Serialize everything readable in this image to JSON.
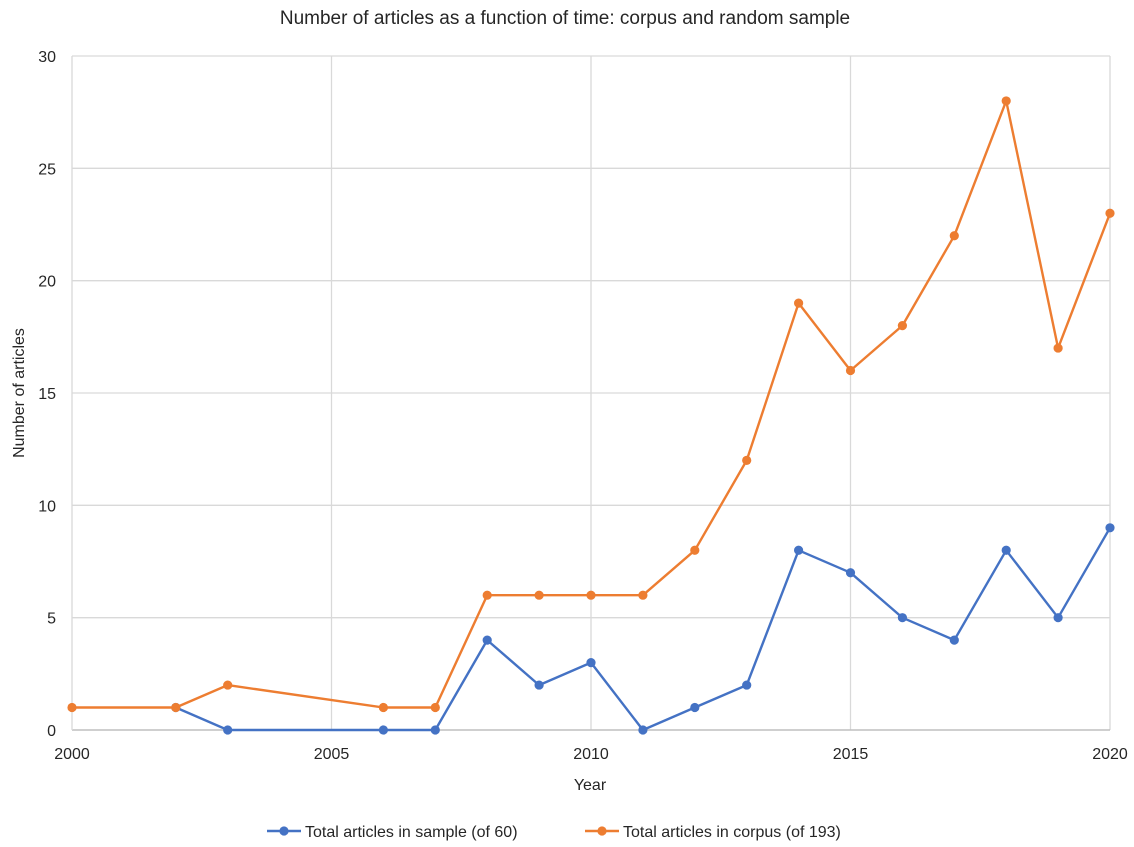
{
  "chart_data": {
    "type": "line",
    "title": "Number of articles as a function of time: corpus and random sample",
    "xlabel": "Year",
    "ylabel": "Number of articles",
    "xlim": [
      2000,
      2020
    ],
    "ylim": [
      0,
      30
    ],
    "x_ticks": [
      2000,
      2005,
      2010,
      2015,
      2020
    ],
    "y_ticks": [
      0,
      5,
      10,
      15,
      20,
      25,
      30
    ],
    "grid": true,
    "legend_position": "bottom",
    "series": [
      {
        "name": "Total articles in sample (of 60)",
        "color": "#4472C4",
        "x": [
          2002,
          2003,
          2006,
          2007,
          2008,
          2009,
          2010,
          2011,
          2012,
          2013,
          2014,
          2015,
          2016,
          2017,
          2018,
          2019,
          2020
        ],
        "values": [
          1,
          0,
          0,
          0,
          4,
          2,
          3,
          0,
          1,
          2,
          8,
          7,
          5,
          4,
          8,
          5,
          9
        ]
      },
      {
        "name": "Total articles in corpus (of 193)",
        "color": "#ED7D31",
        "x": [
          2000,
          2002,
          2003,
          2006,
          2007,
          2008,
          2009,
          2010,
          2011,
          2012,
          2013,
          2014,
          2015,
          2016,
          2017,
          2018,
          2019,
          2020
        ],
        "values": [
          1,
          1,
          2,
          1,
          1,
          6,
          6,
          6,
          6,
          8,
          12,
          19,
          16,
          18,
          22,
          28,
          17,
          23
        ]
      }
    ]
  }
}
